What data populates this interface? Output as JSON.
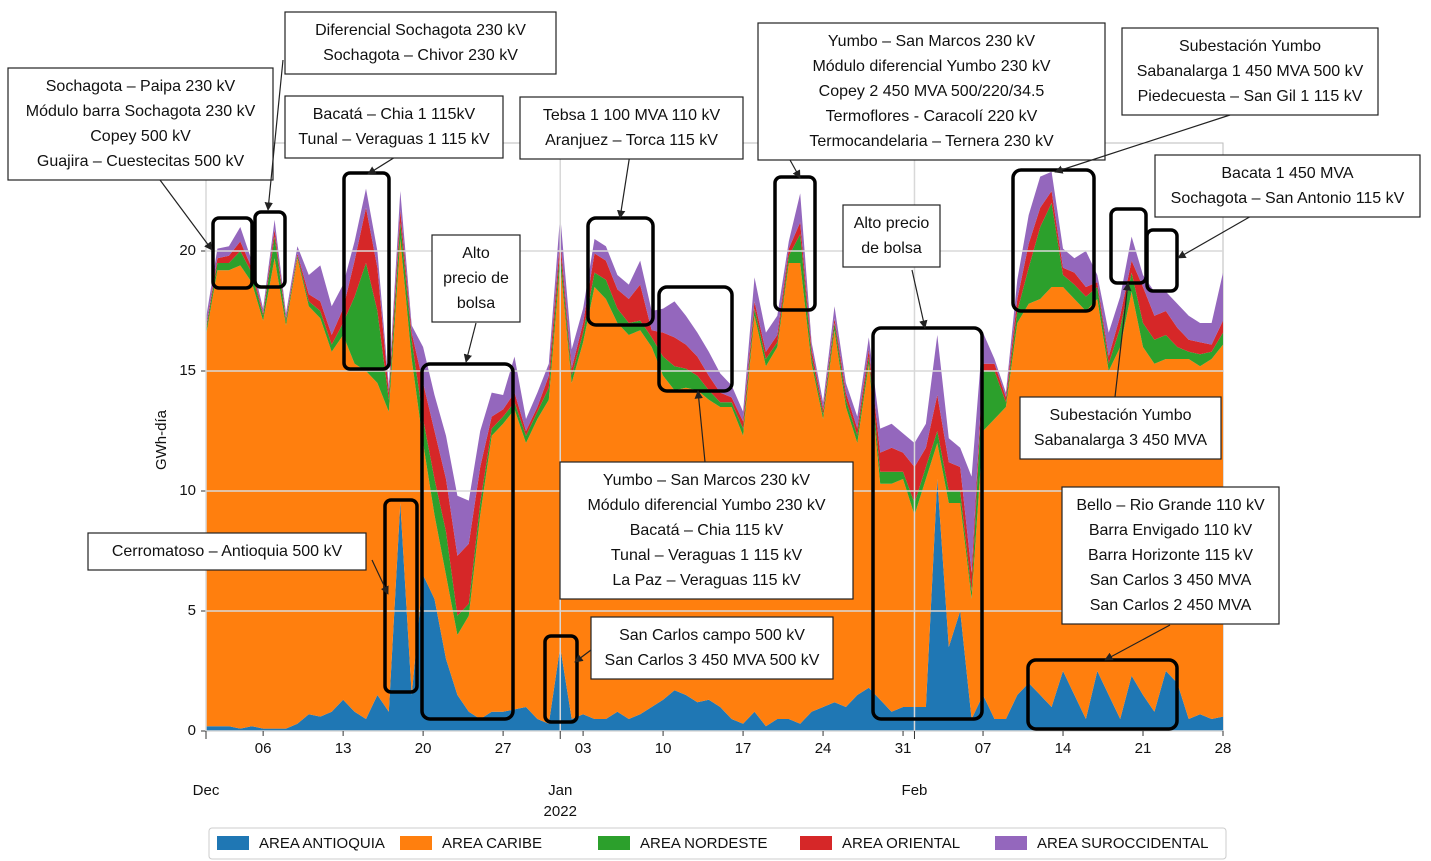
{
  "chart_data": {
    "type": "stacked_area",
    "y_label": "GWh-día",
    "x": [
      0,
      1,
      2,
      3,
      4,
      5,
      6,
      7,
      8,
      9,
      10,
      11,
      12,
      13,
      14,
      15,
      16,
      17,
      18,
      19,
      20,
      21,
      22,
      23,
      24,
      25,
      26,
      27,
      28,
      29,
      30,
      31,
      32,
      33,
      34,
      35,
      36,
      37,
      38,
      39,
      40,
      41,
      42,
      43,
      44,
      45,
      46,
      47,
      48,
      49,
      50,
      51,
      52,
      53,
      54,
      55,
      56,
      57,
      58,
      59,
      60,
      61,
      62,
      63,
      64,
      65,
      66,
      67,
      68,
      69,
      70,
      71,
      72,
      73,
      74,
      75,
      76,
      77,
      78,
      79,
      80,
      81,
      82,
      83,
      84,
      85,
      86,
      87,
      88,
      89
    ],
    "xlim": [
      0,
      89
    ],
    "xticks": [
      {
        "value": 5,
        "label": "06"
      },
      {
        "value": 12,
        "label": "13"
      },
      {
        "value": 19,
        "label": "20"
      },
      {
        "value": 26,
        "label": "27"
      },
      {
        "value": 33,
        "label": "03"
      },
      {
        "value": 40,
        "label": "10"
      },
      {
        "value": 47,
        "label": "17"
      },
      {
        "value": 54,
        "label": "24"
      },
      {
        "value": 61,
        "label": "31"
      },
      {
        "value": 68,
        "label": "07"
      },
      {
        "value": 75,
        "label": "14"
      },
      {
        "value": 82,
        "label": "21"
      },
      {
        "value": 89,
        "label": "28"
      }
    ],
    "xticks_major": [
      {
        "value": 0,
        "label": "Dec"
      },
      {
        "value": 31,
        "label": "Jan"
      },
      {
        "value": 62,
        "label": "Feb"
      }
    ],
    "year_label": "2022",
    "ylim": [
      0,
      24.5
    ],
    "yticks": [
      0,
      5,
      10,
      15,
      20
    ],
    "grid": true,
    "legend": "lower center",
    "series": [
      {
        "name": "AREA ANTIOQUIA",
        "color": "#1f77b4",
        "values": [
          0.2,
          0.2,
          0.2,
          0.1,
          0.2,
          0.1,
          0.1,
          0.1,
          0.3,
          0.7,
          0.6,
          0.8,
          1.3,
          0.8,
          0.5,
          1.5,
          0.8,
          9.5,
          1.5,
          6.5,
          5.5,
          3.0,
          1.5,
          0.8,
          0.5,
          0.8,
          0.8,
          0.9,
          1.0,
          0.5,
          0.3,
          3.5,
          0.5,
          0.7,
          0.5,
          0.5,
          0.8,
          0.5,
          0.7,
          1.0,
          1.3,
          1.7,
          1.5,
          1.2,
          1.3,
          1.0,
          0.5,
          0.3,
          0.8,
          0.2,
          0.5,
          0.5,
          0.3,
          0.8,
          1.0,
          1.2,
          1.0,
          1.5,
          1.8,
          1.3,
          0.8,
          1.0,
          1.0,
          1.0,
          10.5,
          3.5,
          5.0,
          0.5,
          1.5,
          0.5,
          0.5,
          1.5,
          2.0,
          1.5,
          1.0,
          2.5,
          1.5,
          0.5,
          2.5,
          1.5,
          0.5,
          2.3,
          1.5,
          0.8,
          2.5,
          2.0,
          0.5,
          0.7,
          0.5,
          0.6
        ]
      },
      {
        "name": "AREA CARIBE",
        "color": "#ff7f0e",
        "values": [
          16.3,
          19.0,
          19.0,
          19.3,
          18.5,
          17.0,
          19.6,
          16.8,
          19.4,
          17.0,
          16.6,
          15.0,
          15.2,
          14.5,
          14.5,
          13.0,
          12.5,
          11.0,
          14.0,
          5.5,
          3.5,
          3.5,
          2.5,
          4.0,
          8.5,
          11.5,
          12.0,
          12.5,
          11.0,
          12.5,
          13.5,
          16.0,
          14.0,
          15.5,
          18.0,
          17.5,
          16.2,
          16.0,
          16.0,
          15.0,
          13.5,
          12.5,
          12.8,
          13.0,
          12.5,
          12.5,
          13.0,
          12.0,
          16.5,
          15.0,
          15.5,
          19.0,
          19.2,
          14.5,
          12.0,
          15.5,
          12.5,
          10.5,
          13.5,
          9.0,
          9.5,
          9.5,
          8.0,
          9.5,
          1.5,
          6.0,
          4.5,
          5.0,
          11.0,
          12.5,
          13.0,
          15.5,
          15.8,
          16.5,
          17.5,
          16.0,
          16.5,
          17.0,
          15.5,
          13.5,
          15.5,
          16.0,
          14.5,
          14.5,
          13.0,
          13.5,
          15.0,
          14.5,
          15.0,
          15.5
        ]
      },
      {
        "name": "AREA NORDESTE",
        "color": "#2ca02c",
        "values": [
          0.2,
          0.3,
          0.3,
          0.6,
          0.4,
          0.2,
          0.9,
          0.2,
          0.1,
          0.2,
          0.3,
          0.3,
          0.5,
          2.8,
          4.5,
          3.0,
          0.5,
          0.7,
          0.8,
          1.0,
          1.5,
          1.8,
          0.8,
          0.5,
          0.5,
          0.3,
          0.3,
          0.3,
          0.3,
          0.3,
          0.5,
          0.5,
          0.3,
          0.4,
          0.6,
          0.8,
          0.6,
          0.5,
          0.4,
          0.4,
          0.8,
          1.0,
          0.8,
          0.6,
          0.4,
          0.2,
          0.2,
          0.3,
          0.3,
          0.3,
          0.2,
          0.3,
          1.2,
          0.3,
          0.2,
          0.3,
          0.3,
          0.3,
          0.3,
          0.5,
          0.5,
          0.3,
          0.5,
          0.5,
          0.5,
          0.5,
          0.5,
          0.3,
          2.5,
          2.0,
          0.2,
          0.5,
          1.5,
          3.0,
          3.5,
          0.5,
          0.6,
          0.6,
          0.5,
          0.3,
          0.8,
          0.8,
          1.0,
          1.0,
          1.0,
          0.5,
          0.3,
          0.5,
          0.3,
          0.5
        ]
      },
      {
        "name": "AREA ORIENTAL",
        "color": "#d62728",
        "values": [
          0.1,
          0.2,
          0.3,
          0.4,
          0.2,
          0.1,
          0.3,
          0.1,
          0.1,
          0.3,
          0.4,
          0.4,
          0.6,
          1.5,
          2.3,
          1.8,
          0.3,
          0.5,
          0.3,
          1.5,
          2.0,
          2.2,
          2.5,
          2.5,
          1.5,
          0.5,
          0.3,
          0.4,
          0.2,
          0.2,
          0.5,
          0.5,
          0.3,
          0.4,
          0.8,
          0.8,
          0.8,
          1.0,
          1.5,
          0.3,
          1.0,
          1.2,
          1.0,
          0.8,
          0.6,
          0.4,
          0.2,
          0.3,
          0.3,
          0.3,
          0.3,
          0.3,
          0.5,
          0.3,
          0.2,
          0.2,
          0.3,
          0.3,
          0.3,
          0.8,
          1.0,
          0.8,
          1.5,
          0.8,
          1.5,
          1.2,
          1.0,
          0.8,
          0.3,
          0.3,
          0.2,
          0.5,
          1.0,
          0.8,
          0.5,
          0.3,
          0.5,
          0.4,
          0.2,
          0.3,
          0.5,
          0.5,
          1.5,
          1.0,
          1.0,
          0.8,
          0.5,
          0.5,
          0.3,
          0.5
        ]
      },
      {
        "name": "AREA SUROCCIDENTAL",
        "color": "#9467bd",
        "values": [
          0.4,
          0.4,
          0.4,
          0.6,
          0.3,
          0.2,
          0.4,
          0.2,
          0.3,
          0.8,
          1.5,
          1.2,
          1.0,
          0.8,
          0.8,
          0.7,
          0.3,
          0.8,
          0.3,
          1.5,
          1.5,
          1.8,
          2.5,
          1.8,
          1.5,
          1.0,
          0.6,
          1.5,
          0.5,
          0.6,
          0.5,
          1.0,
          0.8,
          0.6,
          0.6,
          0.6,
          0.6,
          0.6,
          1.0,
          0.8,
          1.0,
          1.5,
          1.2,
          1.0,
          1.0,
          0.8,
          0.5,
          0.4,
          1.0,
          0.8,
          0.8,
          0.3,
          1.2,
          0.3,
          0.3,
          0.5,
          0.4,
          0.5,
          0.5,
          1.0,
          1.0,
          0.8,
          1.0,
          1.0,
          2.5,
          1.0,
          0.8,
          4.0,
          1.3,
          0.2,
          0.2,
          0.8,
          1.2,
          1.3,
          0.8,
          0.8,
          0.6,
          1.5,
          0.3,
          1.0,
          0.8,
          1.0,
          0.5,
          1.0,
          0.8,
          1.0,
          1.0,
          0.8,
          0.9,
          2.0
        ]
      }
    ],
    "annotations": [
      {
        "lines": [
          "Sochagota – Paipa 230 kV",
          "Módulo barra Sochagota 230 kV",
          "Copey 500 kV",
          "Guajira – Cuestecitas 500 kV"
        ]
      },
      {
        "lines": [
          "Diferencial Sochagota 230 kV",
          "Sochagota – Chivor 230 kV"
        ]
      },
      {
        "lines": [
          "Bacatá – Chia 1 115kV",
          "Tunal – Veraguas 1 115 kV"
        ]
      },
      {
        "lines": [
          "Alto",
          "precio de",
          "bolsa"
        ]
      },
      {
        "lines": [
          "Tebsa 1 100 MVA 110 kV",
          "Aranjuez – Torca 115 kV"
        ]
      },
      {
        "lines": [
          "Yumbo – San Marcos 230 kV",
          "Módulo diferencial Yumbo 230 kV",
          "Copey 2 450 MVA 500/220/34.5",
          "Termoflores - Caracolí 220 kV",
          "Termocandelaria – Ternera 230 kV"
        ]
      },
      {
        "lines": [
          "Subestación Yumbo",
          "Sabanalarga 1 450 MVA 500 kV",
          "Piedecuesta – San Gil 1 115 kV"
        ]
      },
      {
        "lines": [
          "Bacata 1 450 MVA",
          "Sochagota – San Antonio 115 kV"
        ]
      },
      {
        "lines": [
          "Alto precio",
          "de bolsa"
        ]
      },
      {
        "lines": [
          "Subestación Yumbo",
          "Sabanalarga 3 450 MVA"
        ]
      },
      {
        "lines": [
          "Yumbo – San Marcos 230 kV",
          "Módulo diferencial Yumbo 230 kV",
          "Bacatá – Chia 115 kV",
          "Tunal – Veraguas 1 115 kV",
          "La Paz – Veraguas 115 kV"
        ]
      },
      {
        "lines": [
          "Cerromatoso – Antioquia 500 kV"
        ]
      },
      {
        "lines": [
          "San Carlos campo 500 kV",
          "San Carlos 3 450 MVA 500 kV"
        ]
      },
      {
        "lines": [
          "Bello – Rio Grande 110 kV",
          "Barra Envigado 110 kV",
          "Barra Horizonte 115 kV",
          "San Carlos 3 450 MVA",
          "San Carlos 2 450 MVA"
        ]
      }
    ]
  }
}
